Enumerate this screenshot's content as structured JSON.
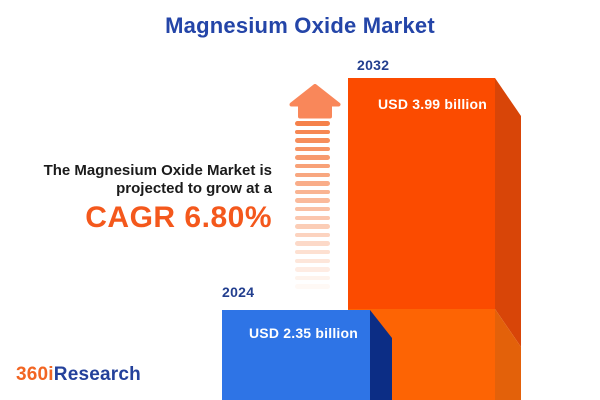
{
  "title": "Magnesium Oxide Market",
  "description": {
    "line1": "The Magnesium Oxide Market is",
    "line2": "projected to grow at a",
    "cagr": "CAGR 6.80%"
  },
  "chart_data": {
    "type": "bar",
    "title": "Magnesium Oxide Market",
    "categories": [
      "2024",
      "2032"
    ],
    "values": [
      2.35,
      3.99
    ],
    "unit": "USD billion",
    "data_labels": [
      "USD 2.35 billion",
      "USD 3.99 billion"
    ],
    "annotations": [
      "CAGR 6.80%"
    ],
    "cagr_percent": 6.8,
    "legend": "none",
    "grid": false,
    "bar_colors": {
      "2024": "#2e74e6",
      "2032": "#fb4b00"
    },
    "bar_secondary_colors": {
      "2024_side": "#0c2d85",
      "2032_side": "#d84508",
      "2032_base_segment": "#fd6404"
    }
  },
  "bars": [
    {
      "year": "2024",
      "label": "USD 2.35 billion"
    },
    {
      "year": "2032",
      "label": "USD 3.99 billion"
    }
  ],
  "arrow": {
    "stripe_count": 20,
    "color_top": "#f5814a",
    "color_bottom": "#fff9f5",
    "head_color": "#f9875a"
  },
  "logo": {
    "prefix": "360i",
    "suffix": "Research"
  },
  "colors": {
    "title_blue": "#2445a8",
    "cagr_orange": "#f4581c",
    "body_text": "#1b1b1b",
    "year_label_blue": "#233f8f"
  }
}
